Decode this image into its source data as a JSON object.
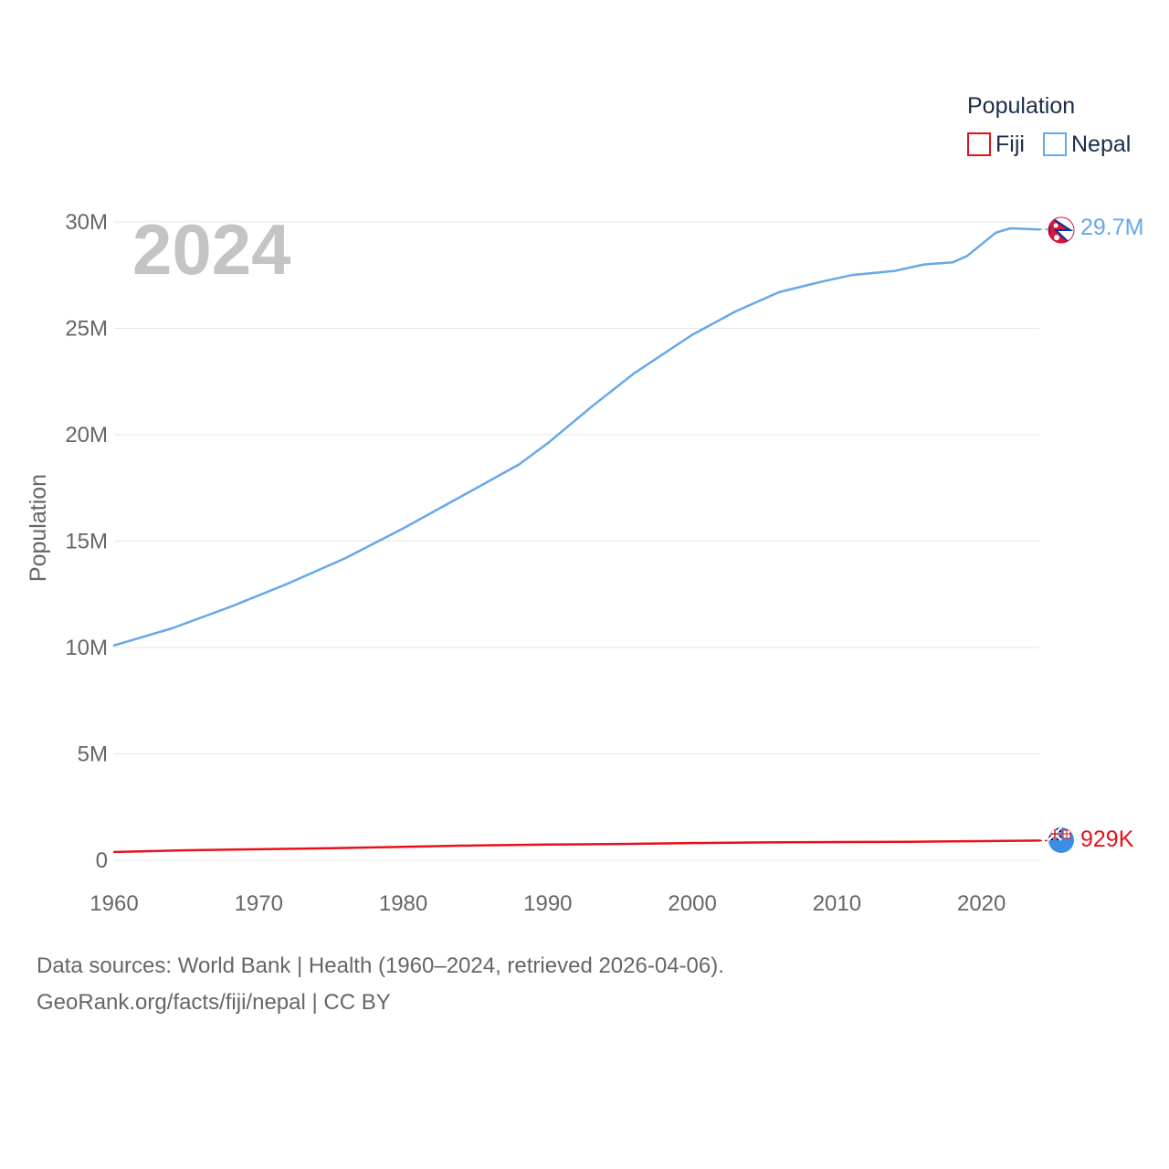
{
  "chart_data": {
    "type": "line",
    "title": "",
    "current_year": "2024",
    "xlabel": "",
    "ylabel": "Population",
    "xlim": [
      1960,
      2024
    ],
    "ylim": [
      0,
      30000000
    ],
    "x_ticks": [
      1960,
      1970,
      1980,
      1990,
      2000,
      2010,
      2020
    ],
    "x_tick_labels": [
      "1960",
      "1970",
      "1980",
      "1990",
      "2000",
      "2010",
      "2020"
    ],
    "y_ticks": [
      0,
      5000000,
      10000000,
      15000000,
      20000000,
      25000000,
      30000000
    ],
    "y_tick_labels": [
      "0",
      "5M",
      "10M",
      "15M",
      "20M",
      "25M",
      "30M"
    ],
    "legend": {
      "title": "Population",
      "position": "top-right",
      "entries": [
        {
          "name": "Fiji",
          "color": "#e8101a"
        },
        {
          "name": "Nepal",
          "color": "#66a8e8"
        }
      ]
    },
    "series": [
      {
        "name": "Nepal",
        "color": "#66a8e8",
        "end_label": "29.7M",
        "points": [
          [
            1960,
            10100000
          ],
          [
            1964,
            10900000
          ],
          [
            1968,
            11900000
          ],
          [
            1972,
            13000000
          ],
          [
            1976,
            14200000
          ],
          [
            1980,
            15600000
          ],
          [
            1984,
            17100000
          ],
          [
            1988,
            18600000
          ],
          [
            1990,
            19600000
          ],
          [
            1993,
            21300000
          ],
          [
            1996,
            22900000
          ],
          [
            2000,
            24700000
          ],
          [
            2003,
            25800000
          ],
          [
            2006,
            26700000
          ],
          [
            2009,
            27200000
          ],
          [
            2011,
            27500000
          ],
          [
            2014,
            27700000
          ],
          [
            2016,
            28000000
          ],
          [
            2018,
            28100000
          ],
          [
            2019,
            28400000
          ],
          [
            2021,
            29500000
          ],
          [
            2022,
            29700000
          ],
          [
            2024,
            29650000
          ]
        ]
      },
      {
        "name": "Fiji",
        "color": "#e8101a",
        "end_label": "929K",
        "points": [
          [
            1960,
            390000
          ],
          [
            1965,
            470000
          ],
          [
            1970,
            520000
          ],
          [
            1975,
            570000
          ],
          [
            1980,
            630000
          ],
          [
            1985,
            700000
          ],
          [
            1990,
            740000
          ],
          [
            1995,
            770000
          ],
          [
            2000,
            810000
          ],
          [
            2005,
            840000
          ],
          [
            2010,
            860000
          ],
          [
            2015,
            870000
          ],
          [
            2020,
            900000
          ],
          [
            2024,
            929000
          ]
        ]
      }
    ]
  },
  "footer": {
    "line1": "Data sources: World Bank | Health (1960–2024, retrieved 2026-04-06).",
    "line2": "GeoRank.org/facts/fiji/nepal | CC BY"
  }
}
